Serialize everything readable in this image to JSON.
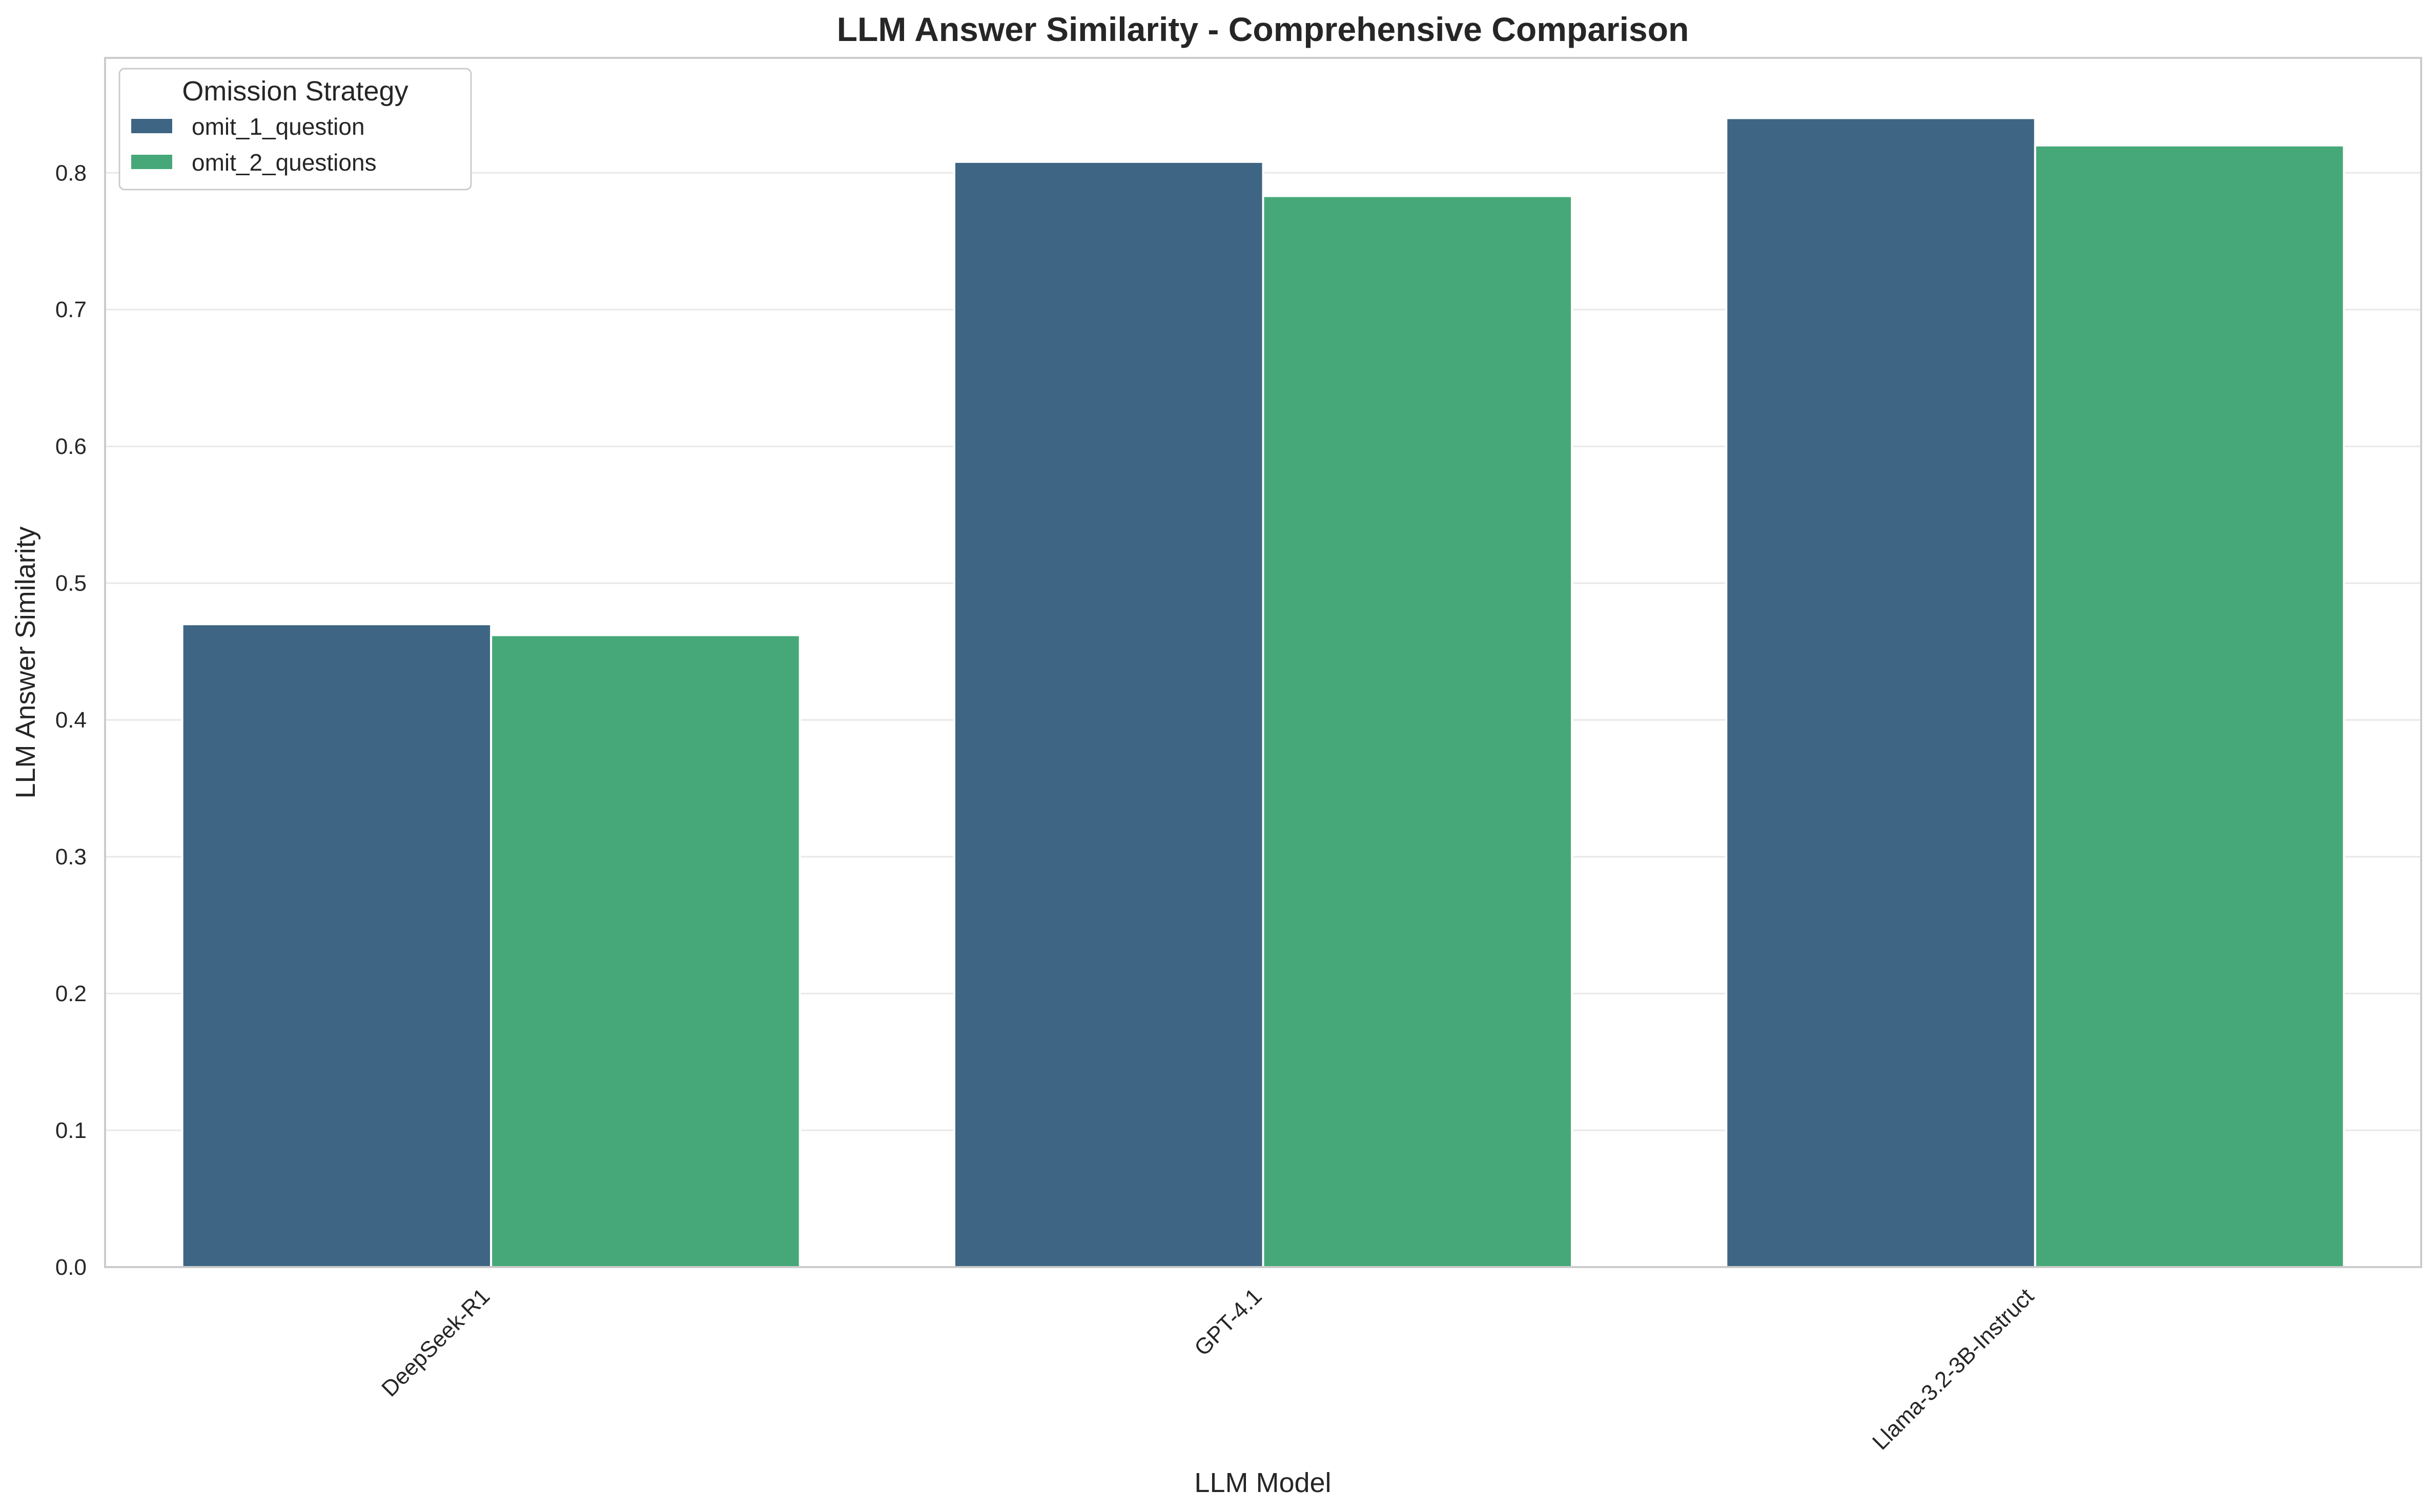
{
  "chart_data": {
    "type": "bar",
    "title": "LLM Answer Similarity - Comprehensive Comparison",
    "xlabel": "LLM Model",
    "ylabel": "LLM Answer Similarity",
    "categories": [
      "DeepSeek-R1",
      "GPT-4.1",
      "Llama-3.2-3B-Instruct"
    ],
    "series": [
      {
        "name": "omit_1_question",
        "color": "#3e6684",
        "values": [
          0.47,
          0.808,
          0.84
        ]
      },
      {
        "name": "omit_2_questions",
        "color": "#46a878",
        "values": [
          0.462,
          0.783,
          0.82
        ]
      }
    ],
    "ylim": [
      0,
      0.884
    ],
    "yticks": [
      "0.0",
      "0.1",
      "0.2",
      "0.3",
      "0.4",
      "0.5",
      "0.6",
      "0.7",
      "0.8"
    ],
    "grid": true,
    "legend": {
      "title": "Omission Strategy",
      "placement": "top-left"
    }
  }
}
